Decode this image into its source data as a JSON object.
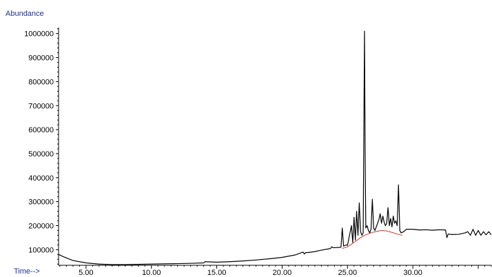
{
  "chart_data": {
    "type": "line",
    "title": "",
    "ylabel": "Abundance",
    "xlabel": "Time-->",
    "xlim": [
      2.9,
      36.0
    ],
    "ylim": [
      35000,
      1025000
    ],
    "x_ticks": [
      5.0,
      10.0,
      15.0,
      20.0,
      25.0,
      30.0
    ],
    "x_tick_labels": [
      "5.00",
      "10.00",
      "15.00",
      "20.00",
      "25.00",
      "30.00"
    ],
    "y_ticks": [
      100000,
      200000,
      300000,
      400000,
      500000,
      600000,
      700000,
      800000,
      900000,
      1000000
    ],
    "y_tick_labels": [
      "100000",
      "200000",
      "300000",
      "400000",
      "500000",
      "600000",
      "700000",
      "800000",
      "900000",
      "1000000"
    ],
    "grid": false,
    "series": [
      {
        "name": "",
        "color": "#000000",
        "x": [
          2.9,
          3.3,
          4.0,
          5.0,
          6.0,
          7.0,
          8.0,
          9.0,
          10.0,
          11.0,
          12.0,
          13.0,
          14.0,
          14.1,
          15.0,
          16.0,
          17.0,
          18.0,
          19.0,
          20.0,
          21.0,
          21.6,
          21.7,
          21.8,
          22.0,
          22.5,
          23.0,
          23.7,
          23.8,
          23.9,
          24.5,
          24.6,
          24.7,
          24.9,
          25.0,
          25.3,
          25.4,
          25.5,
          25.6,
          25.7,
          25.8,
          25.9,
          26.0,
          26.1,
          26.2,
          26.3,
          26.35,
          26.4,
          26.5,
          26.6,
          26.7,
          26.8,
          26.9,
          27.0,
          27.1,
          27.2,
          27.4,
          27.5,
          27.6,
          27.7,
          27.8,
          27.9,
          28.0,
          28.1,
          28.2,
          28.3,
          28.4,
          28.5,
          28.6,
          28.7,
          28.8,
          28.9,
          29.0,
          29.1,
          29.3,
          29.5,
          30.0,
          30.5,
          31.0,
          31.5,
          32.0,
          32.5,
          32.6,
          32.7,
          33.0,
          33.5,
          34.0,
          34.2,
          34.4,
          34.6,
          34.8,
          35.0,
          35.2,
          35.4,
          35.6,
          35.8,
          36.0
        ],
        "y": [
          80000,
          70000,
          55000,
          45000,
          40000,
          38000,
          38000,
          39000,
          40000,
          41000,
          42000,
          43000,
          45000,
          50000,
          48000,
          50000,
          53000,
          57000,
          62000,
          68000,
          78000,
          90000,
          82000,
          88000,
          88000,
          92000,
          98000,
          105000,
          112000,
          108000,
          110000,
          190000,
          115000,
          120000,
          118000,
          200000,
          130000,
          235000,
          140000,
          260000,
          160000,
          295000,
          175000,
          160000,
          170000,
          1010000,
          500000,
          190000,
          200000,
          180000,
          170000,
          185000,
          310000,
          190000,
          180000,
          195000,
          225000,
          250000,
          210000,
          240000,
          215000,
          200000,
          210000,
          275000,
          200000,
          230000,
          195000,
          240000,
          210000,
          220000,
          200000,
          370000,
          180000,
          170000,
          175000,
          185000,
          185000,
          182000,
          183000,
          181000,
          183000,
          182000,
          150000,
          165000,
          163000,
          164000,
          170000,
          175000,
          160000,
          185000,
          160000,
          180000,
          160000,
          175000,
          162000,
          175000,
          162000
        ]
      },
      {
        "name": "",
        "color": "#c0392b",
        "x": [
          24.6,
          25.0,
          25.5,
          26.0,
          26.3,
          26.8,
          27.2,
          27.6,
          28.0,
          28.4,
          28.8,
          29.2
        ],
        "y": [
          105000,
          112000,
          130000,
          150000,
          160000,
          170000,
          176000,
          180000,
          178000,
          172000,
          165000,
          160000
        ]
      }
    ]
  }
}
